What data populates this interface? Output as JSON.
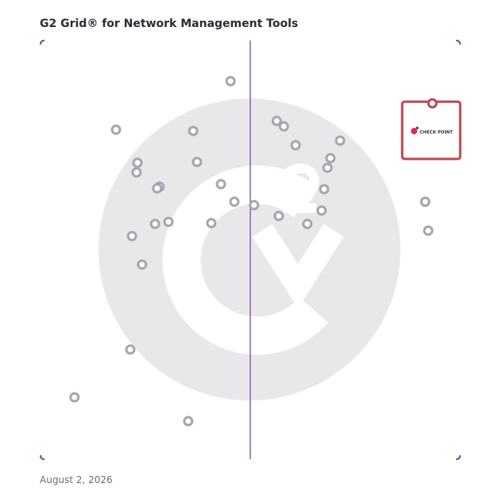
{
  "chart_data": {
    "type": "scatter",
    "title": "G2 Grid® for Network Management Tools",
    "footnote": "August 2, 2026",
    "xlim": [
      0,
      100
    ],
    "ylim": [
      0,
      100
    ],
    "series": [
      {
        "color": "#a3a6ae",
        "x": [
          45.3,
          18.0,
          36.4,
          56.3,
          58.0,
          60.8,
          71.4,
          69.1,
          68.4,
          23.1,
          22.9,
          37.3,
          43.0,
          28.4,
          27.8,
          67.6,
          46.2,
          50.9,
          67.0,
          56.8,
          63.6,
          30.5,
          27.3,
          40.7,
          21.8,
          24.2,
          91.7,
          92.4,
          21.4,
          8.1,
          35.2
        ],
        "y": [
          90.3,
          78.7,
          78.4,
          80.8,
          79.5,
          75.0,
          76.1,
          71.9,
          69.6,
          70.8,
          68.5,
          71.0,
          65.7,
          65.1,
          64.7,
          64.5,
          61.5,
          60.7,
          59.4,
          58.1,
          56.2,
          56.7,
          56.2,
          56.4,
          53.3,
          46.5,
          61.5,
          54.6,
          26.2,
          14.8,
          9.1
        ]
      },
      {
        "name": "CHECK POINT",
        "color": "#b9474f",
        "x": [
          93.4
        ],
        "y": [
          85.0
        ]
      }
    ]
  }
}
